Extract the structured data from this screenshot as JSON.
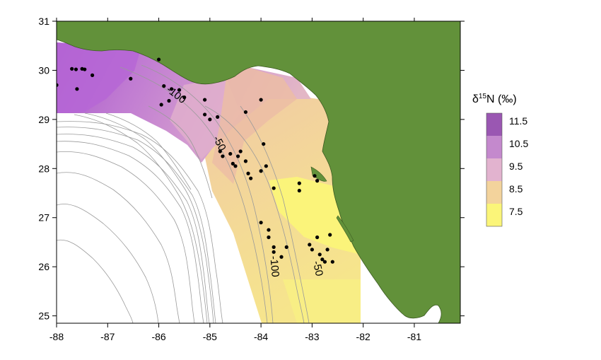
{
  "axes": {
    "x_ticks": [
      "-88",
      "-87",
      "-86",
      "-85",
      "-84",
      "-83",
      "-82",
      "-81"
    ],
    "y_ticks": [
      "31",
      "30",
      "29",
      "28",
      "27",
      "26",
      "25"
    ],
    "x_range": [
      -88,
      -80.1
    ],
    "y_range": [
      24.85,
      31
    ]
  },
  "legend": {
    "title_prefix": "δ",
    "title_sup": "15",
    "title_suffix": "N (‰)",
    "entries": [
      {
        "label": "11.5",
        "color": "#9a57b2"
      },
      {
        "label": "10.5",
        "color": "#c489cd"
      },
      {
        "label": "9.5",
        "color": "#e2b3cf"
      },
      {
        "label": "8.5",
        "color": "#f3d39c"
      },
      {
        "label": "7.5",
        "color": "#fbf579"
      }
    ]
  },
  "contour_labels": [
    {
      "text": "-100",
      "lon": -85.7,
      "lat": 29.45,
      "angle": 38
    },
    {
      "text": "-50",
      "lon": -84.87,
      "lat": 28.48,
      "angle": 62
    },
    {
      "text": "-100",
      "lon": -83.8,
      "lat": 26.0,
      "angle": 85
    },
    {
      "text": "-50",
      "lon": -82.95,
      "lat": 25.95,
      "angle": 78
    }
  ],
  "colors": {
    "land": "#62913a",
    "land_edge": "#3c5a22",
    "bathymetry": "#9a9a9a",
    "points": "#000000"
  },
  "sample_points": [
    [
      -88.0,
      29.7
    ],
    [
      -87.7,
      30.03
    ],
    [
      -87.62,
      30.02
    ],
    [
      -87.5,
      30.03
    ],
    [
      -87.45,
      30.02
    ],
    [
      -87.6,
      29.62
    ],
    [
      -87.3,
      29.9
    ],
    [
      -86.55,
      29.83
    ],
    [
      -86.0,
      30.22
    ],
    [
      -85.9,
      29.68
    ],
    [
      -85.75,
      29.62
    ],
    [
      -85.6,
      29.6
    ],
    [
      -85.5,
      29.45
    ],
    [
      -85.95,
      29.3
    ],
    [
      -85.8,
      29.38
    ],
    [
      -85.1,
      29.4
    ],
    [
      -85.1,
      29.1
    ],
    [
      -85.0,
      29.0
    ],
    [
      -84.85,
      29.05
    ],
    [
      -84.3,
      29.15
    ],
    [
      -84.0,
      29.4
    ],
    [
      -84.8,
      28.35
    ],
    [
      -84.75,
      28.25
    ],
    [
      -84.6,
      28.3
    ],
    [
      -84.55,
      28.1
    ],
    [
      -84.5,
      28.05
    ],
    [
      -84.45,
      28.25
    ],
    [
      -84.4,
      28.35
    ],
    [
      -84.3,
      28.15
    ],
    [
      -84.25,
      27.9
    ],
    [
      -84.2,
      27.8
    ],
    [
      -84.0,
      27.95
    ],
    [
      -83.95,
      28.5
    ],
    [
      -83.9,
      28.05
    ],
    [
      -83.75,
      27.6
    ],
    [
      -83.25,
      27.7
    ],
    [
      -83.25,
      27.55
    ],
    [
      -82.95,
      27.85
    ],
    [
      -82.9,
      27.75
    ],
    [
      -84.0,
      26.9
    ],
    [
      -83.85,
      26.75
    ],
    [
      -83.85,
      26.6
    ],
    [
      -83.75,
      26.4
    ],
    [
      -83.75,
      26.3
    ],
    [
      -83.6,
      26.2
    ],
    [
      -83.5,
      26.4
    ],
    [
      -83.05,
      26.45
    ],
    [
      -83.0,
      26.35
    ],
    [
      -82.9,
      26.6
    ],
    [
      -82.85,
      26.25
    ],
    [
      -82.8,
      26.15
    ],
    [
      -82.75,
      26.1
    ],
    [
      -82.7,
      26.35
    ],
    [
      -82.65,
      26.65
    ],
    [
      -82.6,
      26.1
    ]
  ]
}
